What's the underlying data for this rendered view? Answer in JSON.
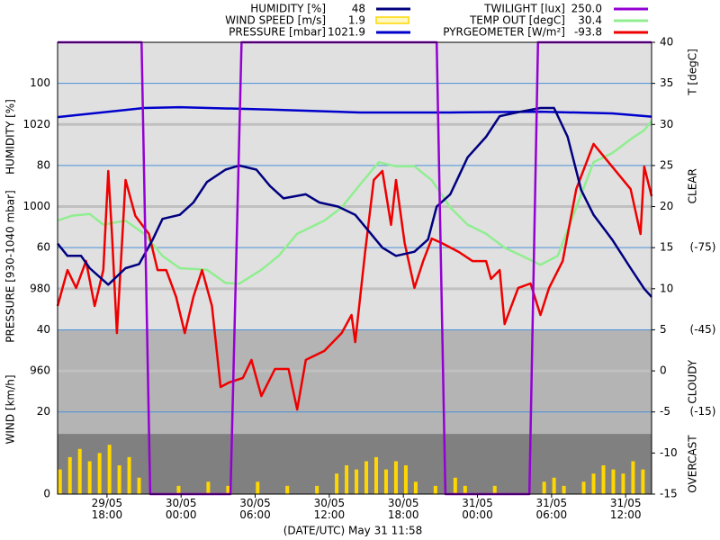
{
  "chart_data": {
    "type": "line",
    "x_title": "(DATE/UTC) May 31 11:58",
    "xlim": [
      14.0,
      62.1
    ],
    "xticks": [
      {
        "value": 18,
        "label": "29/05 18:00"
      },
      {
        "value": 24,
        "label": "30/05 00:00"
      },
      {
        "value": 30,
        "label": "30/05 06:00"
      },
      {
        "value": 36,
        "label": "30/05 12:00"
      },
      {
        "value": 42,
        "label": "30/05 18:00"
      },
      {
        "value": 48,
        "label": "31/05 00:00"
      },
      {
        "value": 54,
        "label": "31/05 06:00"
      },
      {
        "value": 60,
        "label": "31/05 12:00"
      }
    ],
    "axes": {
      "humidity": {
        "label": "HUMIDITY [%]",
        "lim": [
          0,
          110
        ],
        "ticks": [
          40,
          60,
          80,
          100
        ]
      },
      "pressure": {
        "label": "PRESSURE [930-1040 mbar]",
        "lim": [
          930,
          1040
        ],
        "ticks": [
          960,
          980,
          1000,
          1020
        ]
      },
      "wind": {
        "label": "WIND [km/h]",
        "lim": [
          0,
          110
        ],
        "ticks": [
          0,
          20
        ]
      },
      "temperature": {
        "label": "T [degC]",
        "lim": [
          -15,
          40
        ],
        "ticks": [
          -15,
          -10,
          -5,
          0,
          5,
          10,
          15,
          20,
          25,
          30,
          35,
          40
        ]
      },
      "pyrgeometer": {
        "lim": [
          15,
          -150
        ],
        "ticks": [
          {
            "value": -75,
            "label": "(-75)"
          },
          {
            "value": -45,
            "label": "(-45)"
          },
          {
            "value": -15,
            "label": "(-15)"
          }
        ]
      },
      "twilight": {
        "lim": [
          0,
          250
        ]
      }
    },
    "sky_bands": [
      {
        "label": "CLEAR",
        "from": -150,
        "to": -45,
        "color": "#e0e0e0"
      },
      {
        "label": "CLOUDY",
        "from": -45,
        "to": -7,
        "color": "#b4b4b4"
      },
      {
        "label": "OVERCAST",
        "from": -7,
        "to": 15,
        "color": "#808080"
      }
    ],
    "series": [
      {
        "name": "HUMIDITY [%]",
        "current": 48,
        "color": "#000080",
        "axis": "humidity",
        "x": [
          14.0,
          14.8,
          15.9,
          16.6,
          18.1,
          19.5,
          20.6,
          21.7,
          22.5,
          23.9,
          25.0,
          26.1,
          27.6,
          28.7,
          30.1,
          31.2,
          32.3,
          34.1,
          35.2,
          36.7,
          38.1,
          39.2,
          40.3,
          41.4,
          42.9,
          44.0,
          44.7,
          45.8,
          47.2,
          48.7,
          49.8,
          51.3,
          53.1,
          54.2,
          55.3,
          56.4,
          57.4,
          58.9,
          60.4,
          61.5,
          62.1
        ],
        "values": [
          61,
          58,
          58,
          55,
          51,
          55,
          56,
          62,
          67,
          68,
          71,
          76,
          79,
          80,
          79,
          75,
          72,
          73,
          71,
          70,
          68,
          64,
          60,
          58,
          59,
          62,
          70,
          73,
          82,
          87,
          92,
          93,
          94,
          94,
          87,
          74,
          68,
          62,
          55,
          50,
          48
        ]
      },
      {
        "name": "WIND SPEED [m/s]",
        "current": 1.9,
        "color": "#ffd700",
        "axis": "wind",
        "x": [
          14.2,
          15.0,
          15.8,
          16.6,
          17.4,
          18.2,
          19.0,
          19.8,
          20.6,
          21.4,
          22.2,
          23.0,
          23.8,
          24.6,
          25.4,
          26.2,
          27.0,
          27.8,
          28.6,
          29.4,
          30.2,
          31.0,
          31.8,
          32.6,
          33.4,
          34.2,
          35.0,
          35.8,
          36.6,
          37.4,
          38.2,
          39.0,
          39.8,
          40.6,
          41.4,
          42.2,
          43.0,
          43.8,
          44.6,
          45.4,
          46.2,
          47.0,
          47.8,
          48.6,
          49.4,
          50.2,
          51.0,
          51.8,
          52.6,
          53.4,
          54.2,
          55.0,
          55.8,
          56.6,
          57.4,
          58.2,
          59.0,
          59.8,
          60.6,
          61.4
        ],
        "values": [
          6,
          9,
          11,
          8,
          10,
          12,
          7,
          9,
          4,
          0,
          0,
          0,
          2,
          0,
          0,
          3,
          0,
          2,
          0,
          0,
          3,
          0,
          0,
          2,
          0,
          0,
          2,
          0,
          5,
          7,
          6,
          8,
          9,
          6,
          8,
          7,
          3,
          0,
          2,
          0,
          4,
          2,
          0,
          0,
          2,
          0,
          0,
          0,
          0,
          3,
          4,
          2,
          0,
          3,
          5,
          7,
          6,
          5,
          8,
          6
        ]
      },
      {
        "name": "PRESSURE [mbar]",
        "current": 1021.9,
        "color": "#0000cc",
        "axis": "pressure",
        "x": [
          14.0,
          21.0,
          23.9,
          31.2,
          38.5,
          45.8,
          53.1,
          58.9,
          62.1
        ],
        "values": [
          1021.8,
          1024.0,
          1024.2,
          1023.6,
          1022.9,
          1022.9,
          1023.1,
          1022.7,
          1021.9
        ]
      },
      {
        "name": "TWILIGHT [lux]",
        "current": {
          "value": 250,
          "label": "250.0"
        },
        "color": "#9400d3",
        "axis": "twilight",
        "x": [
          14.0,
          20.8,
          21.5,
          28.0,
          28.9,
          44.7,
          45.4,
          52.2,
          52.9,
          62.1
        ],
        "values": [
          250,
          250,
          0,
          0,
          250,
          250,
          0,
          0,
          250,
          250
        ]
      },
      {
        "name": "TEMP OUT [degC]",
        "current": 30.4,
        "color": "#90ee90",
        "axis": "temperature",
        "x": [
          14.0,
          15.2,
          16.6,
          17.7,
          19.5,
          21.0,
          22.5,
          23.9,
          26.1,
          27.6,
          28.7,
          30.5,
          31.9,
          33.4,
          35.6,
          37.0,
          38.5,
          40.0,
          41.4,
          42.9,
          44.3,
          45.8,
          47.2,
          48.7,
          50.2,
          51.6,
          53.1,
          54.5,
          56.0,
          57.4,
          58.9,
          60.4,
          61.5,
          62.1
        ],
        "values": [
          18.3,
          18.9,
          19.1,
          17.8,
          18.3,
          16.7,
          14.0,
          12.5,
          12.3,
          10.7,
          10.6,
          12.3,
          14.0,
          16.7,
          18.3,
          19.9,
          22.7,
          25.4,
          24.9,
          24.9,
          23.2,
          19.9,
          17.8,
          16.7,
          15.0,
          14.0,
          12.9,
          14.0,
          19.9,
          25.4,
          26.5,
          28.2,
          29.3,
          30.4
        ]
      },
      {
        "name": "PYRGEOMETER [W/m²]",
        "current": -93.8,
        "color": "#ee0000",
        "axis": "pyrgeometer",
        "x": [
          14.0,
          14.8,
          15.5,
          16.3,
          17.0,
          17.7,
          18.1,
          18.4,
          18.8,
          19.5,
          20.3,
          21.4,
          22.1,
          22.8,
          23.6,
          24.3,
          25.0,
          25.7,
          26.5,
          27.2,
          27.9,
          29.0,
          29.7,
          30.5,
          31.6,
          32.7,
          33.4,
          34.1,
          35.6,
          37.0,
          37.8,
          38.1,
          38.9,
          39.6,
          40.3,
          41.0,
          41.4,
          42.1,
          42.9,
          43.6,
          44.3,
          45.1,
          46.5,
          47.6,
          48.7,
          49.1,
          49.8,
          50.2,
          51.3,
          52.3,
          53.1,
          53.8,
          54.9,
          56.0,
          57.4,
          58.9,
          60.4,
          61.2,
          61.5,
          62.1
        ],
        "values": [
          -53.7,
          -66.8,
          -60.3,
          -70.1,
          -53.7,
          -66.8,
          -103.0,
          -80.0,
          -43.8,
          -99.7,
          -86.6,
          -80.0,
          -66.8,
          -66.8,
          -57.0,
          -43.8,
          -57.0,
          -66.8,
          -53.7,
          -24.1,
          -25.8,
          -27.4,
          -34.0,
          -20.8,
          -30.7,
          -30.7,
          -15.9,
          -34.0,
          -37.3,
          -43.8,
          -50.4,
          -40.5,
          -73.4,
          -99.7,
          -103.0,
          -83.3,
          -99.7,
          -76.7,
          -60.3,
          -70.1,
          -78.3,
          -76.7,
          -73.4,
          -70.1,
          -70.1,
          -63.6,
          -66.8,
          -47.1,
          -60.3,
          -61.9,
          -50.4,
          -60.3,
          -70.1,
          -96.4,
          -112.9,
          -104.6,
          -96.4,
          -80.0,
          -104.6,
          -93.8
        ]
      }
    ]
  }
}
